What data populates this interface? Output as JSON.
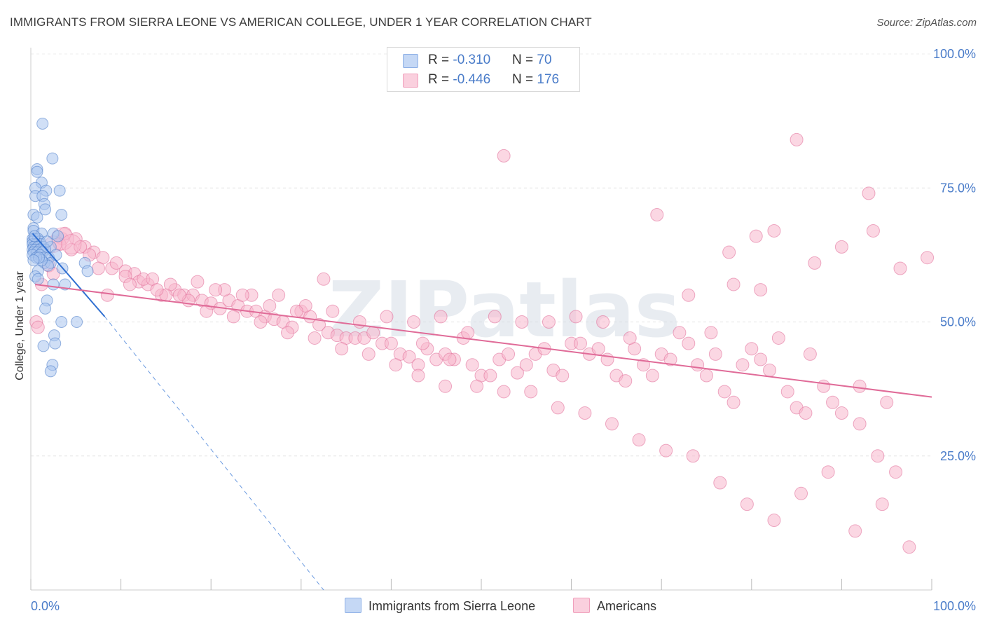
{
  "title": "IMMIGRANTS FROM SIERRA LEONE VS AMERICAN COLLEGE, UNDER 1 YEAR CORRELATION CHART",
  "source": "Source: ZipAtlas.com",
  "watermark": "ZIPatlas",
  "legend": {
    "row1": {
      "r_label": "R = ",
      "r_value": "-0.310",
      "n_label": "N = ",
      "n_value": "70",
      "color": "#a9c4ef"
    },
    "row2": {
      "r_label": "R = ",
      "r_value": "-0.446",
      "n_label": "N = ",
      "n_value": "176",
      "color": "#f7b6cc"
    }
  },
  "bottom_legend": {
    "series1": {
      "label": "Immigrants from Sierra Leone",
      "color": "#a9c4ef"
    },
    "series2": {
      "label": "Americans",
      "color": "#f7b6cc"
    }
  },
  "chart_data": {
    "type": "scatter",
    "ylabel": "College, Under 1 year",
    "x_tick_labels": {
      "left": "0.0%",
      "right": "100.0%"
    },
    "y_tick_labels": [
      {
        "value": 100,
        "label": "100.0%"
      },
      {
        "value": 75,
        "label": "75.0%"
      },
      {
        "value": 50,
        "label": "50.0%"
      },
      {
        "value": 25,
        "label": "25.0%"
      }
    ],
    "xlim": [
      0,
      100
    ],
    "ylim": [
      0,
      105
    ],
    "grid": true,
    "series": [
      {
        "name": "Immigrants from Sierra Leone",
        "color": "#4a7cc9",
        "fill": "#a9c4ef",
        "trend": {
          "x0": 0.2,
          "y0": 66.5,
          "x1": 8.2,
          "y1": 51.0,
          "dash_to_x": 32.5,
          "dash_to_y": 0
        },
        "points": [
          [
            1.3,
            87
          ],
          [
            2.4,
            80.5
          ],
          [
            0.7,
            78.5
          ],
          [
            0.7,
            78
          ],
          [
            1.2,
            76
          ],
          [
            0.5,
            75
          ],
          [
            1.7,
            74.5
          ],
          [
            3.2,
            74.5
          ],
          [
            0.5,
            73.5
          ],
          [
            1.3,
            73.5
          ],
          [
            1.5,
            72
          ],
          [
            1.6,
            71
          ],
          [
            0.3,
            70
          ],
          [
            3.4,
            70
          ],
          [
            0.7,
            69.5
          ],
          [
            0.3,
            67.5
          ],
          [
            0.3,
            67
          ],
          [
            1.2,
            66.5
          ],
          [
            2.5,
            66.5
          ],
          [
            3.0,
            66
          ],
          [
            0.2,
            65.5
          ],
          [
            0.4,
            65.5
          ],
          [
            0.8,
            65.5
          ],
          [
            0.2,
            65
          ],
          [
            1.0,
            65
          ],
          [
            0.2,
            64.5
          ],
          [
            0.6,
            64.5
          ],
          [
            1.1,
            64.5
          ],
          [
            0.3,
            64
          ],
          [
            0.8,
            64
          ],
          [
            1.4,
            64
          ],
          [
            2.2,
            64
          ],
          [
            0.2,
            63.5
          ],
          [
            0.5,
            63.5
          ],
          [
            1.0,
            63.5
          ],
          [
            1.6,
            63.5
          ],
          [
            0.3,
            63
          ],
          [
            0.7,
            63
          ],
          [
            1.3,
            63
          ],
          [
            0.2,
            62.5
          ],
          [
            1.0,
            62.5
          ],
          [
            1.5,
            62
          ],
          [
            2.0,
            62
          ],
          [
            1.5,
            61
          ],
          [
            2.2,
            61
          ],
          [
            1.9,
            60.5
          ],
          [
            3.5,
            60
          ],
          [
            6.0,
            61
          ],
          [
            6.3,
            59.5
          ],
          [
            0.8,
            59.5
          ],
          [
            0.5,
            58.5
          ],
          [
            0.8,
            58
          ],
          [
            3.8,
            57
          ],
          [
            2.5,
            57
          ],
          [
            1.8,
            54
          ],
          [
            1.6,
            52.5
          ],
          [
            3.4,
            50
          ],
          [
            5.1,
            50
          ],
          [
            2.6,
            47.5
          ],
          [
            2.7,
            46
          ],
          [
            1.4,
            45.5
          ],
          [
            2.4,
            42
          ],
          [
            2.2,
            40.8
          ],
          [
            1.2,
            61.5
          ],
          [
            0.6,
            62
          ],
          [
            2.8,
            62.5
          ],
          [
            0.4,
            66
          ],
          [
            0.9,
            62
          ],
          [
            1.8,
            65
          ],
          [
            0.3,
            61.5
          ]
        ]
      },
      {
        "name": "Americans",
        "color": "#e06b98",
        "fill": "#f7b6cc",
        "trend": {
          "x0": 0.5,
          "y0": 57.0,
          "x1": 100,
          "y1": 36.0
        },
        "points": [
          [
            3.5,
            65.5
          ],
          [
            5.0,
            65.5
          ],
          [
            3.2,
            64.5
          ],
          [
            6.0,
            64
          ],
          [
            7.0,
            63
          ],
          [
            8.0,
            62
          ],
          [
            4.5,
            63.5
          ],
          [
            2.0,
            60.5
          ],
          [
            9.0,
            60
          ],
          [
            10.5,
            59.5
          ],
          [
            11.5,
            59
          ],
          [
            12.0,
            57.5
          ],
          [
            13.0,
            57
          ],
          [
            14.5,
            55
          ],
          [
            16.0,
            56
          ],
          [
            17.0,
            55
          ],
          [
            18.0,
            55
          ],
          [
            19.0,
            54
          ],
          [
            20.0,
            53.5
          ],
          [
            21.0,
            52.5
          ],
          [
            22.0,
            54
          ],
          [
            23.0,
            53
          ],
          [
            24.0,
            52
          ],
          [
            25.0,
            52
          ],
          [
            26.0,
            51
          ],
          [
            27.0,
            50.5
          ],
          [
            28.0,
            50
          ],
          [
            29.0,
            49
          ],
          [
            30.0,
            52
          ],
          [
            31.0,
            51
          ],
          [
            32.0,
            49.5
          ],
          [
            33.0,
            48
          ],
          [
            34.0,
            47.5
          ],
          [
            35.0,
            47
          ],
          [
            36.0,
            47
          ],
          [
            37.0,
            47
          ],
          [
            38.0,
            48
          ],
          [
            39.0,
            46
          ],
          [
            40.0,
            46
          ],
          [
            41.0,
            44
          ],
          [
            42.0,
            43.5
          ],
          [
            43.0,
            42
          ],
          [
            44.0,
            45
          ],
          [
            45.0,
            43
          ],
          [
            46.0,
            44
          ],
          [
            47.0,
            43
          ],
          [
            48.0,
            47
          ],
          [
            49.0,
            42
          ],
          [
            50.0,
            40
          ],
          [
            51.0,
            40
          ],
          [
            52.0,
            43
          ],
          [
            53.0,
            44
          ],
          [
            54.0,
            40.5
          ],
          [
            55.0,
            42
          ],
          [
            56.0,
            44
          ],
          [
            57.0,
            45
          ],
          [
            58.0,
            41
          ],
          [
            59.0,
            40
          ],
          [
            60.0,
            46
          ],
          [
            61.0,
            46
          ],
          [
            62.0,
            44
          ],
          [
            63.0,
            45
          ],
          [
            64.0,
            43
          ],
          [
            65.0,
            40
          ],
          [
            66.0,
            39
          ],
          [
            67.0,
            45
          ],
          [
            68.0,
            42
          ],
          [
            69.0,
            40
          ],
          [
            70.0,
            44
          ],
          [
            71.0,
            43
          ],
          [
            72.0,
            48
          ],
          [
            73.0,
            46
          ],
          [
            74.0,
            42
          ],
          [
            75.0,
            40
          ],
          [
            76.0,
            44
          ],
          [
            77.0,
            37
          ],
          [
            78.0,
            35
          ],
          [
            79.0,
            42
          ],
          [
            80.0,
            45
          ],
          [
            81.0,
            43
          ],
          [
            82.0,
            41
          ],
          [
            84.0,
            37
          ],
          [
            85.0,
            34
          ],
          [
            86.0,
            33
          ],
          [
            88.0,
            38
          ],
          [
            89.0,
            35
          ],
          [
            90.0,
            33
          ],
          [
            92.0,
            31
          ],
          [
            94.0,
            25
          ],
          [
            96.0,
            22
          ],
          [
            8.5,
            55
          ],
          [
            12.5,
            58
          ],
          [
            15.5,
            57
          ],
          [
            18.5,
            57.5
          ],
          [
            21.5,
            56
          ],
          [
            24.5,
            55
          ],
          [
            27.5,
            55
          ],
          [
            30.5,
            53
          ],
          [
            33.5,
            52
          ],
          [
            36.5,
            50
          ],
          [
            39.5,
            51
          ],
          [
            42.5,
            50
          ],
          [
            45.5,
            51
          ],
          [
            48.5,
            48
          ],
          [
            51.5,
            51
          ],
          [
            54.5,
            50
          ],
          [
            57.5,
            50
          ],
          [
            60.5,
            51
          ],
          [
            63.5,
            50
          ],
          [
            66.5,
            47
          ],
          [
            32.5,
            58
          ],
          [
            43.5,
            46
          ],
          [
            46.5,
            43
          ],
          [
            49.5,
            38
          ],
          [
            52.5,
            37
          ],
          [
            55.5,
            37
          ],
          [
            58.5,
            34
          ],
          [
            61.5,
            33
          ],
          [
            64.5,
            31
          ],
          [
            67.5,
            28
          ],
          [
            70.5,
            26
          ],
          [
            73.5,
            25
          ],
          [
            76.5,
            20
          ],
          [
            79.5,
            16
          ],
          [
            82.5,
            13
          ],
          [
            85.5,
            18
          ],
          [
            88.5,
            22
          ],
          [
            91.5,
            11
          ],
          [
            94.5,
            16
          ],
          [
            97.5,
            8
          ],
          [
            52.5,
            81
          ],
          [
            85.0,
            84
          ],
          [
            93.0,
            74
          ],
          [
            69.5,
            70
          ],
          [
            77.5,
            63
          ],
          [
            80.5,
            66
          ],
          [
            82.5,
            67
          ],
          [
            87.0,
            61
          ],
          [
            90.0,
            64
          ],
          [
            93.5,
            67
          ],
          [
            96.5,
            60
          ],
          [
            99.5,
            62
          ],
          [
            78.0,
            57
          ],
          [
            81.0,
            56
          ],
          [
            73.0,
            55
          ],
          [
            75.5,
            48
          ],
          [
            83.0,
            47
          ],
          [
            86.5,
            44
          ],
          [
            92.0,
            38
          ],
          [
            95.0,
            35
          ],
          [
            3.8,
            66.5
          ],
          [
            5.5,
            64
          ],
          [
            6.5,
            62.5
          ],
          [
            9.5,
            61
          ],
          [
            10.5,
            58.5
          ],
          [
            13.5,
            58
          ],
          [
            15.0,
            55
          ],
          [
            17.5,
            54
          ],
          [
            20.5,
            56
          ],
          [
            23.5,
            55
          ],
          [
            26.5,
            53
          ],
          [
            29.5,
            52
          ],
          [
            0.6,
            50
          ],
          [
            0.8,
            49
          ],
          [
            1.2,
            57
          ],
          [
            2.5,
            59
          ],
          [
            7.5,
            60
          ],
          [
            11.0,
            57
          ],
          [
            14.0,
            56
          ],
          [
            16.5,
            55
          ],
          [
            19.5,
            52
          ],
          [
            22.5,
            51
          ],
          [
            25.5,
            50
          ],
          [
            28.5,
            48
          ],
          [
            31.5,
            47
          ],
          [
            34.5,
            45
          ],
          [
            37.5,
            44
          ],
          [
            40.5,
            42
          ],
          [
            43.0,
            40
          ],
          [
            46.0,
            38
          ]
        ]
      }
    ]
  }
}
